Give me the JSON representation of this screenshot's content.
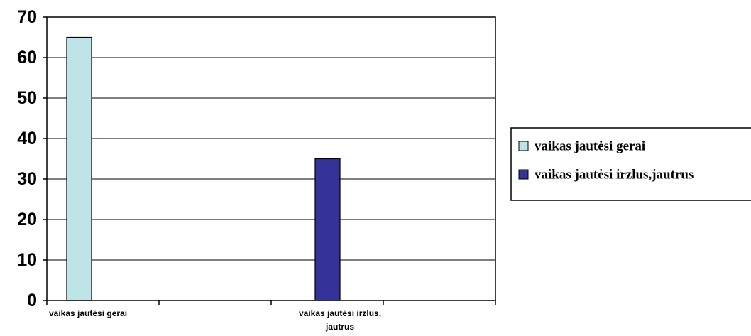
{
  "chart_data": {
    "type": "bar",
    "categories": [
      "vaikas jautėsi gerai",
      "vaikas jautėsi irzlus, jautrus"
    ],
    "series": [
      {
        "name": "vaikas jautėsi gerai",
        "color": "#bfe4e8",
        "values": [
          65,
          null
        ]
      },
      {
        "name": "vaikas jautėsi irzlus,jautrus",
        "color": "#333399",
        "values": [
          null,
          35
        ]
      }
    ],
    "title": "",
    "xlabel": "",
    "ylabel": "",
    "ylim": [
      0,
      70
    ],
    "yticks": [
      0,
      10,
      20,
      30,
      40,
      50,
      60,
      70
    ],
    "grid": true,
    "legend": "right"
  }
}
